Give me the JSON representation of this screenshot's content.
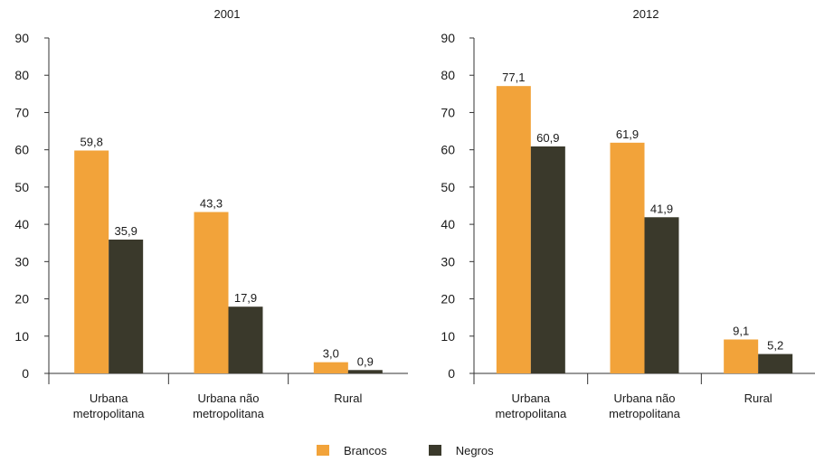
{
  "colors": {
    "brancos": "#f2a33a",
    "negros": "#3a392b",
    "axis": "#333333"
  },
  "legend": [
    {
      "label": "Brancos",
      "color": "#f2a33a"
    },
    {
      "label": "Negros",
      "color": "#3a392b"
    }
  ],
  "chart_data": [
    {
      "type": "bar",
      "title": "2001",
      "categories": [
        [
          "Urbana",
          "metropolitana"
        ],
        [
          "Urbana não",
          "metropolitana"
        ],
        [
          "Rural"
        ]
      ],
      "series": [
        {
          "name": "Brancos",
          "values": [
            59.8,
            43.3,
            3.0
          ],
          "labels": [
            "59,8",
            "43,3",
            "3,0"
          ]
        },
        {
          "name": "Negros",
          "values": [
            35.9,
            17.9,
            0.9
          ],
          "labels": [
            "35,9",
            "17,9",
            "0,9"
          ]
        }
      ],
      "ylim": [
        0,
        90
      ],
      "yticks": [
        0,
        10,
        20,
        30,
        40,
        50,
        60,
        70,
        80,
        90
      ],
      "grid": false,
      "legend_position": "bottom-center"
    },
    {
      "type": "bar",
      "title": "2012",
      "categories": [
        [
          "Urbana",
          "metropolitana"
        ],
        [
          "Urbana não",
          "metropolitana"
        ],
        [
          "Rural"
        ]
      ],
      "series": [
        {
          "name": "Brancos",
          "values": [
            77.1,
            61.9,
            9.1
          ],
          "labels": [
            "77,1",
            "61,9",
            "9,1"
          ]
        },
        {
          "name": "Negros",
          "values": [
            60.9,
            41.9,
            5.2
          ],
          "labels": [
            "60,9",
            "41,9",
            "5,2"
          ]
        }
      ],
      "ylim": [
        0,
        90
      ],
      "yticks": [
        0,
        10,
        20,
        30,
        40,
        50,
        60,
        70,
        80,
        90
      ],
      "grid": false,
      "legend_position": "bottom-center"
    }
  ]
}
